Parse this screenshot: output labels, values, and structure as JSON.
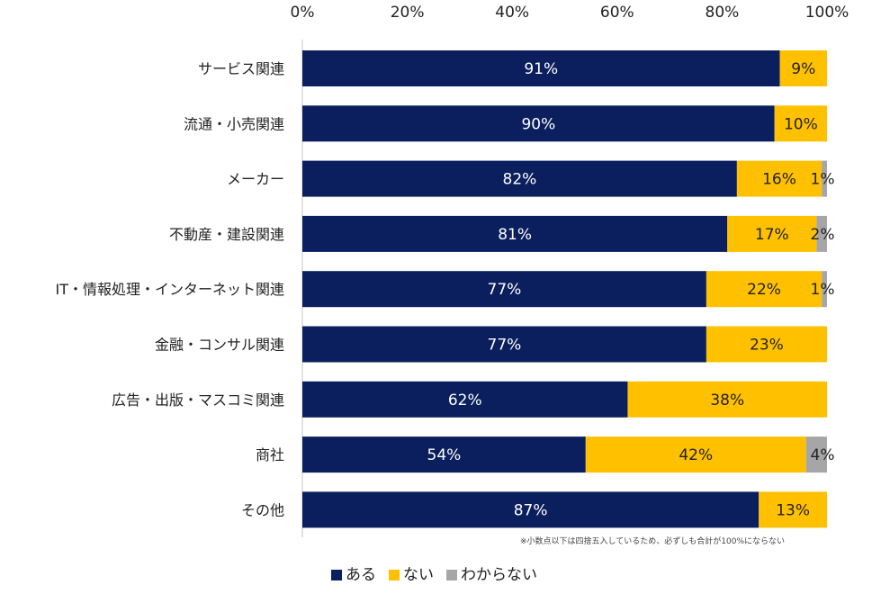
{
  "chart_data": {
    "type": "bar",
    "orientation": "horizontal",
    "stacked": true,
    "title": "",
    "xlabel": "",
    "ylabel": "",
    "xlim": [
      0,
      100
    ],
    "x_ticks": [
      "0%",
      "20%",
      "40%",
      "60%",
      "80%",
      "100%"
    ],
    "x_tick_values": [
      0,
      20,
      40,
      60,
      80,
      100
    ],
    "grid": false,
    "legend_position": "bottom",
    "categories": [
      "サービス関連",
      "流通・小売関連",
      "メーカー",
      "不動産・建設関連",
      "IT・情報処理・インターネット関連",
      "金融・コンサル関連",
      "広告・出版・マスコミ関連",
      "商社",
      "その他"
    ],
    "series": [
      {
        "name": "ある",
        "color": "#0b1f5e",
        "label_color": "#ffffff",
        "values": [
          91,
          90,
          82,
          81,
          77,
          77,
          62,
          54,
          87
        ]
      },
      {
        "name": "ない",
        "color": "#ffc000",
        "label_color": "#222222",
        "values": [
          9,
          10,
          16,
          17,
          22,
          23,
          38,
          42,
          13
        ]
      },
      {
        "name": "わからない",
        "color": "#a6a6a6",
        "label_color": "#222222",
        "values": [
          0,
          0,
          1,
          2,
          1,
          0,
          0,
          4,
          0
        ]
      }
    ],
    "footnote": "※小数点以下は四捨五入しているため、必ずしも合計が100%にならない"
  }
}
